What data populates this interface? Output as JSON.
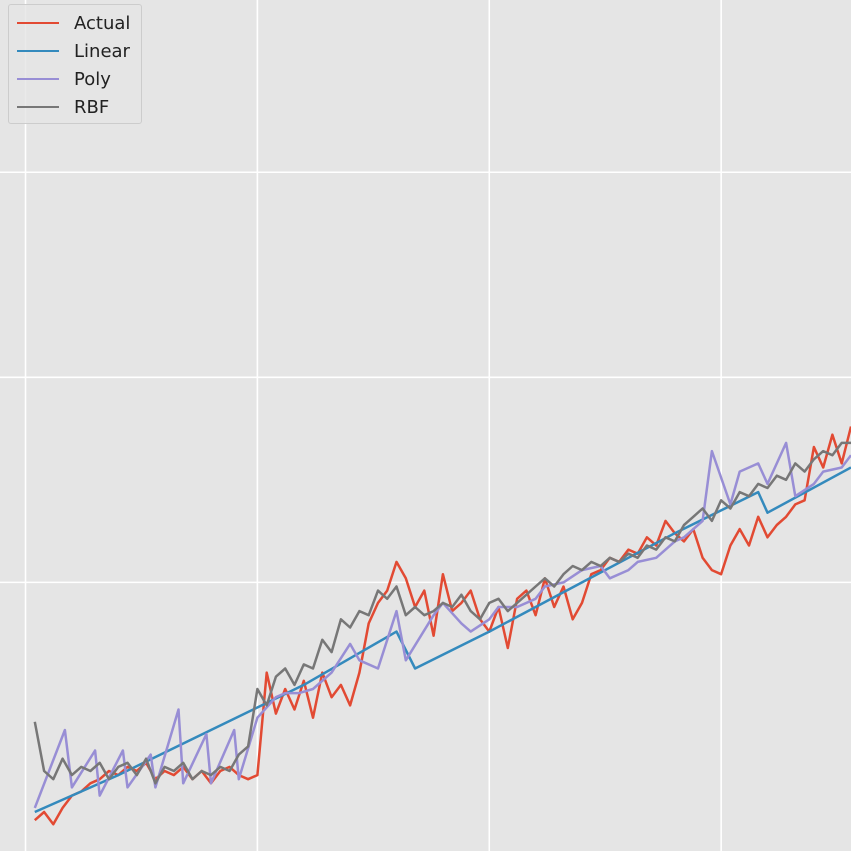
{
  "chart_data": {
    "type": "line",
    "title": "",
    "xlabel": "",
    "ylabel": "",
    "xlim": [
      -0.55,
      17.8
    ],
    "ylim": [
      -6.55,
      14.2
    ],
    "xgrid": [
      0,
      5,
      10,
      15
    ],
    "ygrid": [
      0,
      5,
      10,
      15
    ],
    "grid": true,
    "legend": "top-left",
    "series": [
      {
        "name": "Actual",
        "color": "#e24a33",
        "x": [
          0.2,
          0.4,
          0.6,
          0.8,
          1.0,
          1.2,
          1.4,
          1.6,
          1.8,
          2.0,
          2.2,
          2.4,
          2.6,
          2.8,
          3.0,
          3.2,
          3.4,
          3.6,
          3.8,
          4.0,
          4.2,
          4.4,
          4.6,
          4.8,
          5.0,
          5.2,
          5.4,
          5.6,
          5.8,
          6.0,
          6.2,
          6.4,
          6.6,
          6.8,
          7.0,
          7.2,
          7.4,
          7.6,
          7.8,
          8.0,
          8.2,
          8.4,
          8.6,
          8.8,
          9.0,
          9.2,
          9.4,
          9.6,
          9.8,
          10.0,
          10.2,
          10.4,
          10.6,
          10.8,
          11.0,
          11.2,
          11.4,
          11.6,
          11.8,
          12.0,
          12.2,
          12.4,
          12.6,
          12.8,
          13.0,
          13.2,
          13.4,
          13.6,
          13.8,
          14.0,
          14.2,
          14.4,
          14.6,
          14.8,
          15.0,
          15.2,
          15.4,
          15.6,
          15.8,
          16.0,
          16.2,
          16.4,
          16.6,
          16.8,
          17.0,
          17.2,
          17.4,
          17.6,
          17.8
        ],
        "values": [
          -5.8,
          -5.6,
          -5.9,
          -5.5,
          -5.2,
          -5.1,
          -4.9,
          -4.8,
          -4.6,
          -4.7,
          -4.5,
          -4.6,
          -4.4,
          -4.8,
          -4.6,
          -4.7,
          -4.5,
          -4.8,
          -4.6,
          -4.9,
          -4.6,
          -4.5,
          -4.7,
          -4.8,
          -4.7,
          -2.2,
          -3.2,
          -2.6,
          -3.1,
          -2.4,
          -3.3,
          -2.2,
          -2.8,
          -2.5,
          -3.0,
          -2.2,
          -1.0,
          -0.5,
          -0.2,
          0.5,
          0.1,
          -0.6,
          -0.2,
          -1.3,
          0.2,
          -0.7,
          -0.5,
          -0.2,
          -0.9,
          -1.2,
          -0.6,
          -1.6,
          -0.4,
          -0.2,
          -0.8,
          0.1,
          -0.6,
          -0.1,
          -0.9,
          -0.5,
          0.2,
          0.3,
          0.6,
          0.5,
          0.8,
          0.7,
          1.1,
          0.9,
          1.5,
          1.2,
          1.0,
          1.3,
          0.6,
          0.3,
          0.2,
          0.9,
          1.3,
          0.9,
          1.6,
          1.1,
          1.4,
          1.6,
          1.9,
          2.0,
          3.3,
          2.8,
          3.6,
          2.9,
          3.8
        ]
      },
      {
        "name": "Linear",
        "color": "#348abd",
        "x": [
          0.2,
          2.0,
          4.0,
          6.0,
          8.0,
          8.4,
          10.0,
          12.0,
          14.0,
          15.8,
          16.0,
          17.8
        ],
        "values": [
          -5.6,
          -4.7,
          -3.6,
          -2.5,
          -1.2,
          -2.1,
          -1.2,
          0.0,
          1.2,
          2.2,
          1.7,
          2.8
        ]
      },
      {
        "name": "Poly",
        "color": "#988ed5",
        "x": [
          0.2,
          0.85,
          1.0,
          1.5,
          1.6,
          2.1,
          2.2,
          2.7,
          2.8,
          3.3,
          3.4,
          3.9,
          4.0,
          4.5,
          4.6,
          5.0,
          5.4,
          5.6,
          5.9,
          6.2,
          6.6,
          7.0,
          7.2,
          7.6,
          8.0,
          8.2,
          8.8,
          9.0,
          9.4,
          9.6,
          10.0,
          10.2,
          10.6,
          11.0,
          11.2,
          11.6,
          12.0,
          12.4,
          12.6,
          13.0,
          13.2,
          13.6,
          14.0,
          14.2,
          14.6,
          14.8,
          15.2,
          15.4,
          15.8,
          16.0,
          16.4,
          16.6,
          17.0,
          17.2,
          17.6,
          17.8
        ],
        "values": [
          -5.5,
          -3.6,
          -5.0,
          -4.1,
          -5.2,
          -4.1,
          -5.0,
          -4.2,
          -5.0,
          -3.1,
          -4.9,
          -3.7,
          -4.9,
          -3.6,
          -4.8,
          -3.3,
          -2.8,
          -2.7,
          -2.7,
          -2.6,
          -2.2,
          -1.5,
          -1.9,
          -2.1,
          -0.7,
          -1.9,
          -0.8,
          -0.5,
          -1.0,
          -1.2,
          -0.9,
          -0.6,
          -0.6,
          -0.4,
          -0.1,
          0.0,
          0.3,
          0.4,
          0.1,
          0.3,
          0.5,
          0.6,
          1.0,
          1.1,
          1.5,
          3.2,
          1.9,
          2.7,
          2.9,
          2.4,
          3.4,
          2.1,
          2.4,
          2.7,
          2.8,
          3.1
        ]
      },
      {
        "name": "RBF",
        "color": "#777777",
        "x": [
          0.2,
          0.4,
          0.6,
          0.8,
          1.0,
          1.2,
          1.4,
          1.6,
          1.8,
          2.0,
          2.2,
          2.4,
          2.6,
          2.8,
          3.0,
          3.2,
          3.4,
          3.6,
          3.8,
          4.0,
          4.2,
          4.4,
          4.6,
          4.8,
          5.0,
          5.2,
          5.4,
          5.6,
          5.8,
          6.0,
          6.2,
          6.4,
          6.6,
          6.8,
          7.0,
          7.2,
          7.4,
          7.6,
          7.8,
          8.0,
          8.2,
          8.4,
          8.6,
          8.8,
          9.0,
          9.2,
          9.4,
          9.6,
          9.8,
          10.0,
          10.2,
          10.4,
          10.6,
          10.8,
          11.0,
          11.2,
          11.4,
          11.6,
          11.8,
          12.0,
          12.2,
          12.4,
          12.6,
          12.8,
          13.0,
          13.2,
          13.4,
          13.6,
          13.8,
          14.0,
          14.2,
          14.4,
          14.6,
          14.8,
          15.0,
          15.2,
          15.4,
          15.6,
          15.8,
          16.0,
          16.2,
          16.4,
          16.6,
          16.8,
          17.0,
          17.2,
          17.4,
          17.6,
          17.8
        ],
        "values": [
          -3.4,
          -4.6,
          -4.8,
          -4.3,
          -4.7,
          -4.5,
          -4.6,
          -4.4,
          -4.8,
          -4.5,
          -4.4,
          -4.7,
          -4.3,
          -4.9,
          -4.5,
          -4.6,
          -4.4,
          -4.8,
          -4.6,
          -4.7,
          -4.5,
          -4.6,
          -4.2,
          -4.0,
          -2.6,
          -3.0,
          -2.3,
          -2.1,
          -2.5,
          -2.0,
          -2.1,
          -1.4,
          -1.7,
          -0.9,
          -1.1,
          -0.7,
          -0.8,
          -0.2,
          -0.4,
          -0.1,
          -0.8,
          -0.6,
          -0.8,
          -0.7,
          -0.5,
          -0.6,
          -0.3,
          -0.7,
          -0.9,
          -0.5,
          -0.4,
          -0.7,
          -0.5,
          -0.3,
          -0.1,
          0.1,
          -0.1,
          0.2,
          0.4,
          0.3,
          0.5,
          0.4,
          0.6,
          0.5,
          0.7,
          0.6,
          0.9,
          0.8,
          1.1,
          1.0,
          1.4,
          1.6,
          1.8,
          1.5,
          2.0,
          1.8,
          2.2,
          2.1,
          2.4,
          2.3,
          2.6,
          2.5,
          2.9,
          2.7,
          3.0,
          3.2,
          3.1,
          3.4,
          3.4
        ]
      }
    ]
  }
}
